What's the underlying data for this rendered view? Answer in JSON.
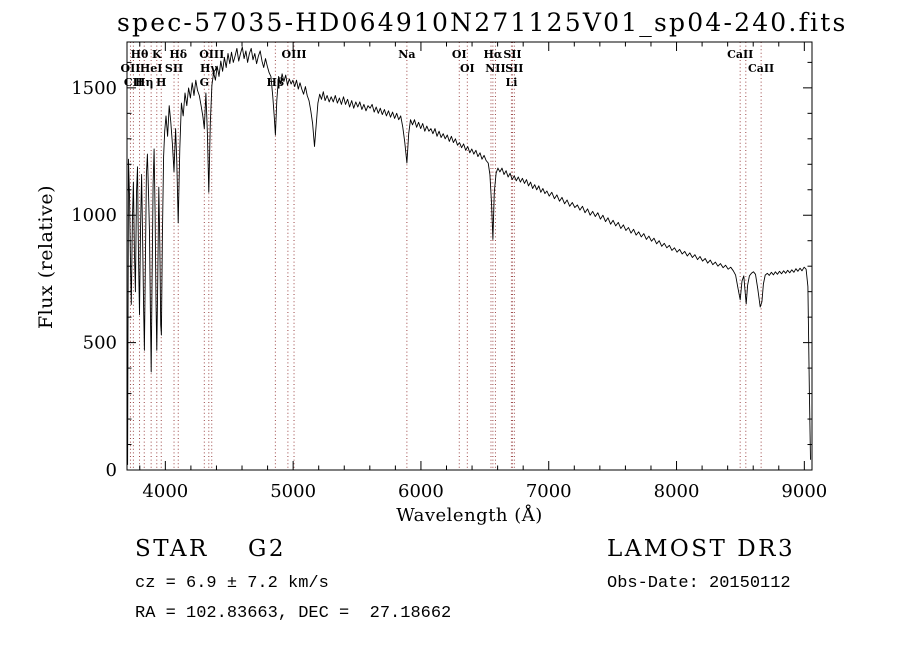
{
  "chart_data": {
    "type": "line",
    "title": "spec-57035-HD064910N271125V01_sp04-240.fits",
    "xlabel": "Wavelength (Å)",
    "ylabel": "Flux (relative)",
    "xlim": [
      3700,
      9060
    ],
    "ylim": [
      0,
      1680
    ],
    "xticks": [
      4000,
      5000,
      6000,
      7000,
      8000,
      9000
    ],
    "x_minor_step": 200,
    "yticks": [
      0,
      500,
      1000,
      1500
    ],
    "y_minor_step": 100,
    "grid": false,
    "legend": "none",
    "line_color": "#000000",
    "annotation_color": "#9c4646",
    "spectral_lines": [
      {
        "wl": 3727,
        "label": "OII",
        "row": 1
      },
      {
        "wl": 3750,
        "label": "CII",
        "row": 2
      },
      {
        "wl": 3798,
        "label": "Hθ",
        "row": 0
      },
      {
        "wl": 3835,
        "label": "Hη",
        "row": 2
      },
      {
        "wl": 3889,
        "label": "HeI",
        "row": 1
      },
      {
        "wl": 3933,
        "label": "K",
        "row": 0
      },
      {
        "wl": 3968,
        "label": "H",
        "row": 2
      },
      {
        "wl": 4068,
        "label": "SII",
        "row": 1
      },
      {
        "wl": 4101,
        "label": "Hδ",
        "row": 0
      },
      {
        "wl": 4305,
        "label": "G",
        "row": 2
      },
      {
        "wl": 4340,
        "label": "Hγ",
        "row": 1
      },
      {
        "wl": 4363,
        "label": "OIII",
        "row": 0
      },
      {
        "wl": 4861,
        "label": "Hβ",
        "row": 2
      },
      {
        "wl": 4959,
        "label": "",
        "row": 0
      },
      {
        "wl": 5007,
        "label": "OIII",
        "row": 0
      },
      {
        "wl": 5890,
        "label": "Na",
        "row": 0
      },
      {
        "wl": 6300,
        "label": "OI",
        "row": 0
      },
      {
        "wl": 6363,
        "label": "OI",
        "row": 1
      },
      {
        "wl": 6548,
        "label": "",
        "row": 0
      },
      {
        "wl": 6563,
        "label": "Hα",
        "row": 0
      },
      {
        "wl": 6583,
        "label": "NII",
        "row": 1
      },
      {
        "wl": 6708,
        "label": "Li",
        "row": 2
      },
      {
        "wl": 6716,
        "label": "SII",
        "row": 0
      },
      {
        "wl": 6731,
        "label": "SII",
        "row": 1
      },
      {
        "wl": 8498,
        "label": "CaII",
        "row": 0
      },
      {
        "wl": 8542,
        "label": "",
        "row": 0
      },
      {
        "wl": 8662,
        "label": "CaII",
        "row": 1
      }
    ],
    "spectrum": [
      [
        3705,
        20
      ],
      [
        3712,
        1220
      ],
      [
        3720,
        1060
      ],
      [
        3728,
        780
      ],
      [
        3734,
        650
      ],
      [
        3742,
        980
      ],
      [
        3750,
        1130
      ],
      [
        3758,
        860
      ],
      [
        3766,
        700
      ],
      [
        3774,
        1090
      ],
      [
        3782,
        1190
      ],
      [
        3790,
        840
      ],
      [
        3798,
        610
      ],
      [
        3806,
        940
      ],
      [
        3814,
        1160
      ],
      [
        3822,
        910
      ],
      [
        3830,
        640
      ],
      [
        3836,
        470
      ],
      [
        3844,
        820
      ],
      [
        3852,
        1160
      ],
      [
        3860,
        1240
      ],
      [
        3868,
        1090
      ],
      [
        3876,
        930
      ],
      [
        3883,
        620
      ],
      [
        3889,
        385
      ],
      [
        3896,
        720
      ],
      [
        3904,
        1120
      ],
      [
        3912,
        1260
      ],
      [
        3920,
        1010
      ],
      [
        3927,
        660
      ],
      [
        3933,
        470
      ],
      [
        3941,
        760
      ],
      [
        3949,
        1110
      ],
      [
        3957,
        890
      ],
      [
        3964,
        570
      ],
      [
        3969,
        530
      ],
      [
        3977,
        920
      ],
      [
        3986,
        1230
      ],
      [
        3995,
        1330
      ],
      [
        4005,
        1390
      ],
      [
        4018,
        1310
      ],
      [
        4030,
        1430
      ],
      [
        4042,
        1370
      ],
      [
        4055,
        1280
      ],
      [
        4068,
        1170
      ],
      [
        4080,
        1340
      ],
      [
        4090,
        1210
      ],
      [
        4101,
        970
      ],
      [
        4113,
        1260
      ],
      [
        4126,
        1440
      ],
      [
        4140,
        1390
      ],
      [
        4154,
        1480
      ],
      [
        4168,
        1430
      ],
      [
        4182,
        1500
      ],
      [
        4196,
        1460
      ],
      [
        4210,
        1520
      ],
      [
        4224,
        1470
      ],
      [
        4238,
        1530
      ],
      [
        4252,
        1490
      ],
      [
        4266,
        1470
      ],
      [
        4280,
        1430
      ],
      [
        4293,
        1390
      ],
      [
        4305,
        1340
      ],
      [
        4317,
        1480
      ],
      [
        4329,
        1320
      ],
      [
        4340,
        1090
      ],
      [
        4352,
        1360
      ],
      [
        4364,
        1510
      ],
      [
        4378,
        1560
      ],
      [
        4392,
        1530
      ],
      [
        4406,
        1585
      ],
      [
        4420,
        1545
      ],
      [
        4434,
        1605
      ],
      [
        4448,
        1565
      ],
      [
        4462,
        1620
      ],
      [
        4476,
        1580
      ],
      [
        4490,
        1635
      ],
      [
        4504,
        1595
      ],
      [
        4518,
        1640
      ],
      [
        4532,
        1600
      ],
      [
        4546,
        1625
      ],
      [
        4560,
        1655
      ],
      [
        4574,
        1605
      ],
      [
        4588,
        1635
      ],
      [
        4602,
        1660
      ],
      [
        4616,
        1615
      ],
      [
        4630,
        1645
      ],
      [
        4644,
        1600
      ],
      [
        4658,
        1635
      ],
      [
        4672,
        1655
      ],
      [
        4686,
        1610
      ],
      [
        4700,
        1635
      ],
      [
        4714,
        1595
      ],
      [
        4728,
        1625
      ],
      [
        4742,
        1645
      ],
      [
        4756,
        1605
      ],
      [
        4770,
        1580
      ],
      [
        4784,
        1615
      ],
      [
        4798,
        1585
      ],
      [
        4812,
        1560
      ],
      [
        4826,
        1545
      ],
      [
        4840,
        1470
      ],
      [
        4852,
        1390
      ],
      [
        4861,
        1315
      ],
      [
        4872,
        1450
      ],
      [
        4886,
        1545
      ],
      [
        4900,
        1515
      ],
      [
        4914,
        1555
      ],
      [
        4928,
        1525
      ],
      [
        4942,
        1550
      ],
      [
        4956,
        1510
      ],
      [
        4970,
        1535
      ],
      [
        4984,
        1515
      ],
      [
        4998,
        1530
      ],
      [
        5012,
        1505
      ],
      [
        5026,
        1530
      ],
      [
        5040,
        1495
      ],
      [
        5054,
        1520
      ],
      [
        5068,
        1495
      ],
      [
        5082,
        1475
      ],
      [
        5096,
        1505
      ],
      [
        5110,
        1470
      ],
      [
        5124,
        1450
      ],
      [
        5138,
        1410
      ],
      [
        5152,
        1360
      ],
      [
        5167,
        1270
      ],
      [
        5180,
        1350
      ],
      [
        5194,
        1440
      ],
      [
        5208,
        1475
      ],
      [
        5222,
        1455
      ],
      [
        5236,
        1485
      ],
      [
        5250,
        1450
      ],
      [
        5266,
        1470
      ],
      [
        5282,
        1445
      ],
      [
        5298,
        1465
      ],
      [
        5314,
        1445
      ],
      [
        5330,
        1470
      ],
      [
        5346,
        1440
      ],
      [
        5362,
        1460
      ],
      [
        5378,
        1435
      ],
      [
        5394,
        1465
      ],
      [
        5410,
        1435
      ],
      [
        5426,
        1455
      ],
      [
        5442,
        1425
      ],
      [
        5458,
        1450
      ],
      [
        5474,
        1420
      ],
      [
        5490,
        1445
      ],
      [
        5506,
        1425
      ],
      [
        5522,
        1445
      ],
      [
        5538,
        1415
      ],
      [
        5554,
        1435
      ],
      [
        5570,
        1410
      ],
      [
        5586,
        1430
      ],
      [
        5602,
        1420
      ],
      [
        5618,
        1435
      ],
      [
        5634,
        1405
      ],
      [
        5650,
        1425
      ],
      [
        5666,
        1400
      ],
      [
        5682,
        1420
      ],
      [
        5698,
        1395
      ],
      [
        5714,
        1415
      ],
      [
        5730,
        1390
      ],
      [
        5746,
        1410
      ],
      [
        5762,
        1385
      ],
      [
        5778,
        1405
      ],
      [
        5794,
        1380
      ],
      [
        5810,
        1400
      ],
      [
        5826,
        1375
      ],
      [
        5842,
        1390
      ],
      [
        5858,
        1345
      ],
      [
        5874,
        1285
      ],
      [
        5890,
        1205
      ],
      [
        5904,
        1320
      ],
      [
        5918,
        1375
      ],
      [
        5934,
        1355
      ],
      [
        5950,
        1375
      ],
      [
        5966,
        1345
      ],
      [
        5982,
        1365
      ],
      [
        5998,
        1340
      ],
      [
        6014,
        1360
      ],
      [
        6030,
        1330
      ],
      [
        6046,
        1350
      ],
      [
        6062,
        1330
      ],
      [
        6078,
        1340
      ],
      [
        6094,
        1320
      ],
      [
        6110,
        1340
      ],
      [
        6126,
        1310
      ],
      [
        6142,
        1330
      ],
      [
        6158,
        1305
      ],
      [
        6174,
        1320
      ],
      [
        6190,
        1300
      ],
      [
        6206,
        1315
      ],
      [
        6222,
        1290
      ],
      [
        6238,
        1310
      ],
      [
        6254,
        1285
      ],
      [
        6270,
        1300
      ],
      [
        6286,
        1275
      ],
      [
        6302,
        1285
      ],
      [
        6318,
        1265
      ],
      [
        6334,
        1280
      ],
      [
        6350,
        1255
      ],
      [
        6366,
        1270
      ],
      [
        6382,
        1245
      ],
      [
        6398,
        1260
      ],
      [
        6414,
        1240
      ],
      [
        6430,
        1255
      ],
      [
        6446,
        1230
      ],
      [
        6462,
        1245
      ],
      [
        6478,
        1220
      ],
      [
        6494,
        1235
      ],
      [
        6510,
        1215
      ],
      [
        6526,
        1205
      ],
      [
        6540,
        1160
      ],
      [
        6552,
        1050
      ],
      [
        6563,
        905
      ],
      [
        6574,
        1090
      ],
      [
        6588,
        1165
      ],
      [
        6602,
        1185
      ],
      [
        6618,
        1170
      ],
      [
        6634,
        1185
      ],
      [
        6650,
        1160
      ],
      [
        6666,
        1175
      ],
      [
        6682,
        1150
      ],
      [
        6698,
        1165
      ],
      [
        6714,
        1140
      ],
      [
        6730,
        1155
      ],
      [
        6746,
        1135
      ],
      [
        6762,
        1150
      ],
      [
        6778,
        1130
      ],
      [
        6794,
        1145
      ],
      [
        6810,
        1125
      ],
      [
        6826,
        1140
      ],
      [
        6842,
        1115
      ],
      [
        6858,
        1130
      ],
      [
        6874,
        1105
      ],
      [
        6890,
        1120
      ],
      [
        6906,
        1100
      ],
      [
        6922,
        1115
      ],
      [
        6938,
        1090
      ],
      [
        6954,
        1105
      ],
      [
        6970,
        1085
      ],
      [
        6986,
        1095
      ],
      [
        7004,
        1075
      ],
      [
        7024,
        1090
      ],
      [
        7044,
        1065
      ],
      [
        7064,
        1080
      ],
      [
        7084,
        1055
      ],
      [
        7104,
        1070
      ],
      [
        7124,
        1045
      ],
      [
        7144,
        1060
      ],
      [
        7164,
        1035
      ],
      [
        7184,
        1050
      ],
      [
        7204,
        1030
      ],
      [
        7224,
        1040
      ],
      [
        7244,
        1020
      ],
      [
        7264,
        1035
      ],
      [
        7284,
        1010
      ],
      [
        7304,
        1025
      ],
      [
        7324,
        1000
      ],
      [
        7344,
        1015
      ],
      [
        7364,
        995
      ],
      [
        7384,
        1010
      ],
      [
        7404,
        985
      ],
      [
        7424,
        1000
      ],
      [
        7444,
        975
      ],
      [
        7464,
        990
      ],
      [
        7484,
        965
      ],
      [
        7504,
        980
      ],
      [
        7524,
        958
      ],
      [
        7544,
        972
      ],
      [
        7564,
        948
      ],
      [
        7584,
        962
      ],
      [
        7604,
        940
      ],
      [
        7624,
        952
      ],
      [
        7644,
        930
      ],
      [
        7664,
        945
      ],
      [
        7684,
        922
      ],
      [
        7704,
        935
      ],
      [
        7724,
        915
      ],
      [
        7744,
        928
      ],
      [
        7764,
        905
      ],
      [
        7784,
        918
      ],
      [
        7804,
        898
      ],
      [
        7824,
        910
      ],
      [
        7844,
        888
      ],
      [
        7864,
        900
      ],
      [
        7884,
        878
      ],
      [
        7904,
        890
      ],
      [
        7924,
        872
      ],
      [
        7944,
        882
      ],
      [
        7964,
        862
      ],
      [
        7984,
        872
      ],
      [
        8004,
        855
      ],
      [
        8024,
        866
      ],
      [
        8044,
        848
      ],
      [
        8064,
        858
      ],
      [
        8084,
        840
      ],
      [
        8104,
        852
      ],
      [
        8124,
        834
      ],
      [
        8144,
        845
      ],
      [
        8164,
        826
      ],
      [
        8184,
        838
      ],
      [
        8204,
        820
      ],
      [
        8224,
        830
      ],
      [
        8244,
        812
      ],
      [
        8264,
        824
      ],
      [
        8284,
        806
      ],
      [
        8304,
        816
      ],
      [
        8324,
        800
      ],
      [
        8344,
        810
      ],
      [
        8364,
        794
      ],
      [
        8384,
        804
      ],
      [
        8404,
        788
      ],
      [
        8424,
        796
      ],
      [
        8444,
        782
      ],
      [
        8462,
        765
      ],
      [
        8480,
        715
      ],
      [
        8498,
        668
      ],
      [
        8512,
        742
      ],
      [
        8526,
        762
      ],
      [
        8536,
        705
      ],
      [
        8545,
        652
      ],
      [
        8556,
        725
      ],
      [
        8570,
        762
      ],
      [
        8586,
        772
      ],
      [
        8602,
        778
      ],
      [
        8618,
        768
      ],
      [
        8636,
        710
      ],
      [
        8655,
        640
      ],
      [
        8668,
        660
      ],
      [
        8680,
        730
      ],
      [
        8694,
        765
      ],
      [
        8710,
        772
      ],
      [
        8726,
        764
      ],
      [
        8742,
        776
      ],
      [
        8758,
        766
      ],
      [
        8774,
        778
      ],
      [
        8790,
        768
      ],
      [
        8806,
        780
      ],
      [
        8822,
        770
      ],
      [
        8838,
        782
      ],
      [
        8854,
        772
      ],
      [
        8870,
        784
      ],
      [
        8886,
        774
      ],
      [
        8902,
        786
      ],
      [
        8918,
        776
      ],
      [
        8934,
        790
      ],
      [
        8950,
        780
      ],
      [
        8966,
        792
      ],
      [
        8982,
        782
      ],
      [
        8998,
        796
      ],
      [
        9014,
        788
      ],
      [
        9028,
        720
      ],
      [
        9040,
        300
      ],
      [
        9048,
        40
      ]
    ]
  },
  "footer": {
    "class_line": "STAR    G2",
    "cz_line": "cz = 6.9 ± 7.2 km/s",
    "radec_line": "RA = 102.83663, DEC =  27.18662",
    "survey": "LAMOST DR3",
    "obs_date": "Obs-Date: 20150112"
  }
}
